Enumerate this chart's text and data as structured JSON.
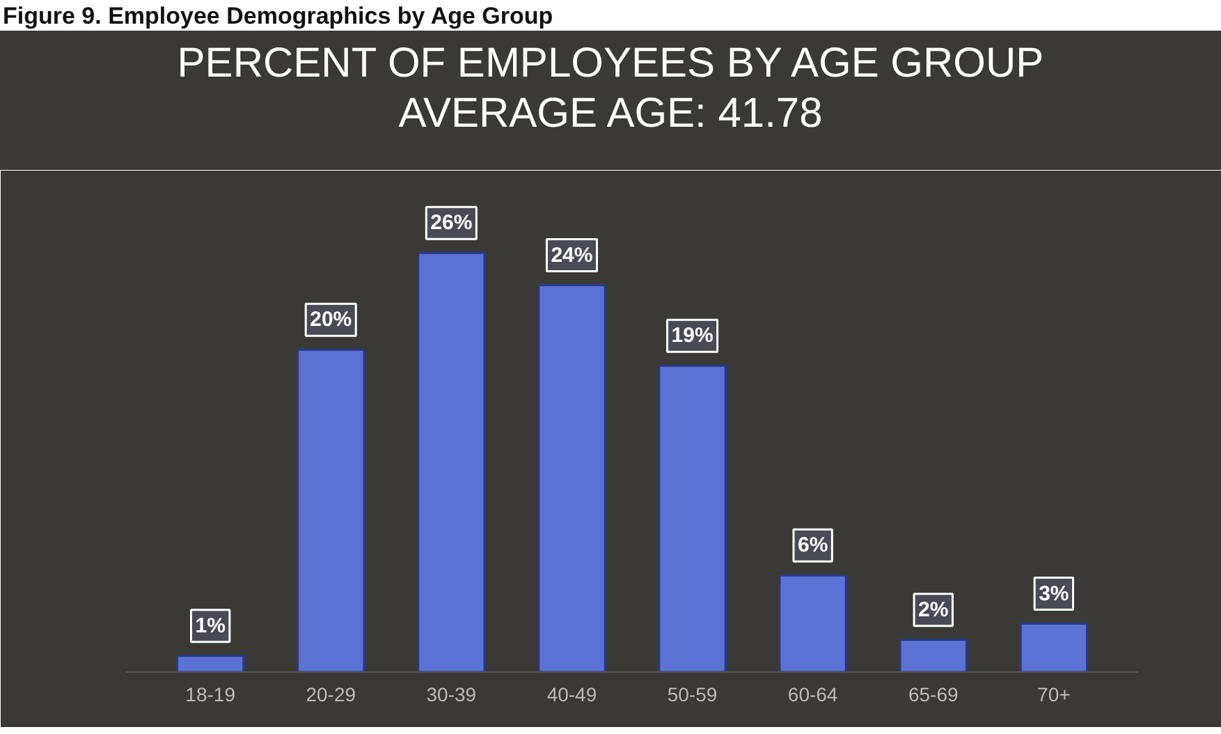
{
  "chart_data": {
    "type": "bar",
    "title": "Figure 9. Employee Demographics by Age Group",
    "subtitle": "PERCENT OF EMPLOYEES BY AGE GROUP\nAVERAGE AGE: 41.78",
    "categories": [
      "18-19",
      "20-29",
      "30-39",
      "40-49",
      "50-59",
      "60-64",
      "65-69",
      "70+"
    ],
    "values": [
      1,
      20,
      26,
      24,
      19,
      6,
      2,
      3
    ],
    "value_labels": [
      "1%",
      "20%",
      "26%",
      "24%",
      "19%",
      "6%",
      "2%",
      "3%"
    ],
    "color": "#5b72d4",
    "grid": false
  }
}
